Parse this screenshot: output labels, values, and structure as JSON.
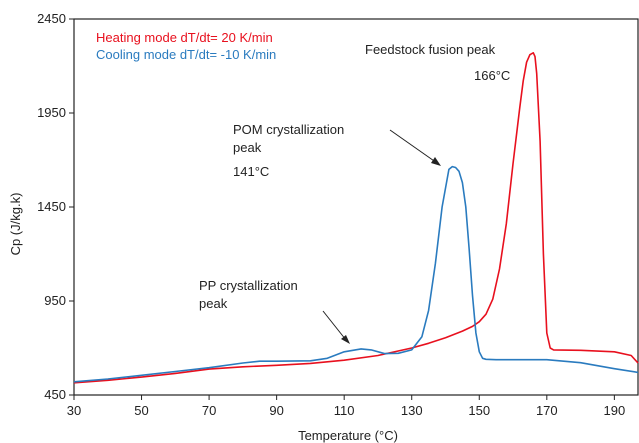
{
  "chart_data": {
    "type": "line",
    "xlabel": "Temperature (°C)",
    "ylabel": "Cp (J/kg.k)",
    "xlim": [
      30,
      197
    ],
    "ylim": [
      450,
      2450
    ],
    "xticks": [
      30,
      50,
      70,
      90,
      110,
      130,
      150,
      170,
      190
    ],
    "yticks": [
      450,
      950,
      1450,
      1950,
      2450
    ],
    "grid": false,
    "legend_position": "top-left",
    "series": [
      {
        "name": "Heating mode dT/dt=  20 K/min",
        "color": "#e8101e",
        "x": [
          30,
          40,
          50,
          60,
          70,
          80,
          90,
          100,
          110,
          120,
          130,
          135,
          140,
          145,
          148,
          150,
          152,
          154,
          156,
          158,
          160,
          162,
          163,
          164,
          165,
          166,
          166.5,
          167,
          168,
          169,
          170,
          171,
          172,
          180,
          190,
          195,
          197
        ],
        "y": [
          515,
          528,
          545,
          565,
          588,
          600,
          608,
          618,
          635,
          660,
          700,
          725,
          755,
          790,
          815,
          840,
          880,
          960,
          1120,
          1360,
          1680,
          1980,
          2120,
          2220,
          2260,
          2270,
          2250,
          2160,
          1800,
          1200,
          780,
          700,
          690,
          688,
          680,
          660,
          620
        ]
      },
      {
        "name": "Cooling mode dT/dt= -10 K/min",
        "color": "#2a7bbf",
        "x": [
          30,
          40,
          50,
          60,
          70,
          80,
          85,
          90,
          100,
          105,
          110,
          115,
          118,
          122,
          126,
          130,
          133,
          135,
          137,
          139,
          141,
          142,
          143,
          144,
          145,
          146,
          147,
          148,
          149,
          150,
          151,
          152,
          155,
          160,
          170,
          180,
          190,
          197
        ],
        "y": [
          520,
          535,
          555,
          575,
          595,
          620,
          630,
          630,
          632,
          645,
          680,
          695,
          690,
          670,
          672,
          690,
          760,
          900,
          1150,
          1450,
          1650,
          1665,
          1660,
          1640,
          1580,
          1450,
          1230,
          980,
          780,
          680,
          645,
          640,
          638,
          638,
          638,
          622,
          590,
          570
        ]
      }
    ],
    "annotations": [
      {
        "lines": [
          "Feedstock fusion peak",
          "166°C"
        ]
      },
      {
        "lines": [
          "POM crystallization",
          "peak",
          "141°C"
        ]
      },
      {
        "lines": [
          "PP crystallization",
          "peak"
        ]
      }
    ]
  }
}
